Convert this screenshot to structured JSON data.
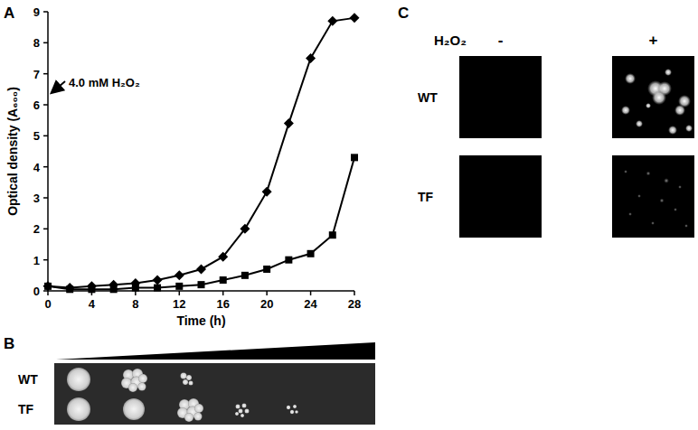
{
  "chart_data": {
    "type": "line",
    "x_label": "Time (h)",
    "y_label": "Optical density (A₆₀₀)",
    "annotation": "4.0 mM H₂O₂",
    "x": [
      0,
      2,
      4,
      6,
      8,
      10,
      12,
      14,
      16,
      18,
      20,
      22,
      24,
      26,
      28
    ],
    "series": [
      {
        "color": "#000000",
        "marker": "diamond",
        "line_style": "solid",
        "values": [
          0.15,
          0.1,
          0.15,
          0.2,
          0.25,
          0.35,
          0.5,
          0.7,
          1.1,
          2.0,
          3.2,
          5.4,
          7.5,
          8.7,
          8.8
        ]
      },
      {
        "color": "#000000",
        "marker": "square",
        "line_style": "solid",
        "values": [
          0.15,
          0.05,
          0.05,
          0.05,
          0.1,
          0.1,
          0.15,
          0.2,
          0.35,
          0.5,
          0.7,
          1.0,
          1.2,
          1.8,
          4.3
        ]
      }
    ],
    "xlim": [
      0,
      28
    ],
    "ylim": [
      0,
      9
    ],
    "xticks": [
      0,
      4,
      8,
      12,
      16,
      20,
      24,
      28
    ],
    "yticks": [
      0,
      1,
      2,
      3,
      4,
      5,
      6,
      7,
      8,
      9
    ],
    "grid": false
  },
  "panels": {
    "labels": [
      "A",
      "B",
      "C"
    ]
  },
  "panel_b": {
    "rows": [
      "WT",
      "TF"
    ]
  },
  "panel_c": {
    "treatment": "H₂O₂",
    "conditions": [
      "-",
      "+"
    ],
    "rows": [
      "WT",
      "TF"
    ]
  }
}
